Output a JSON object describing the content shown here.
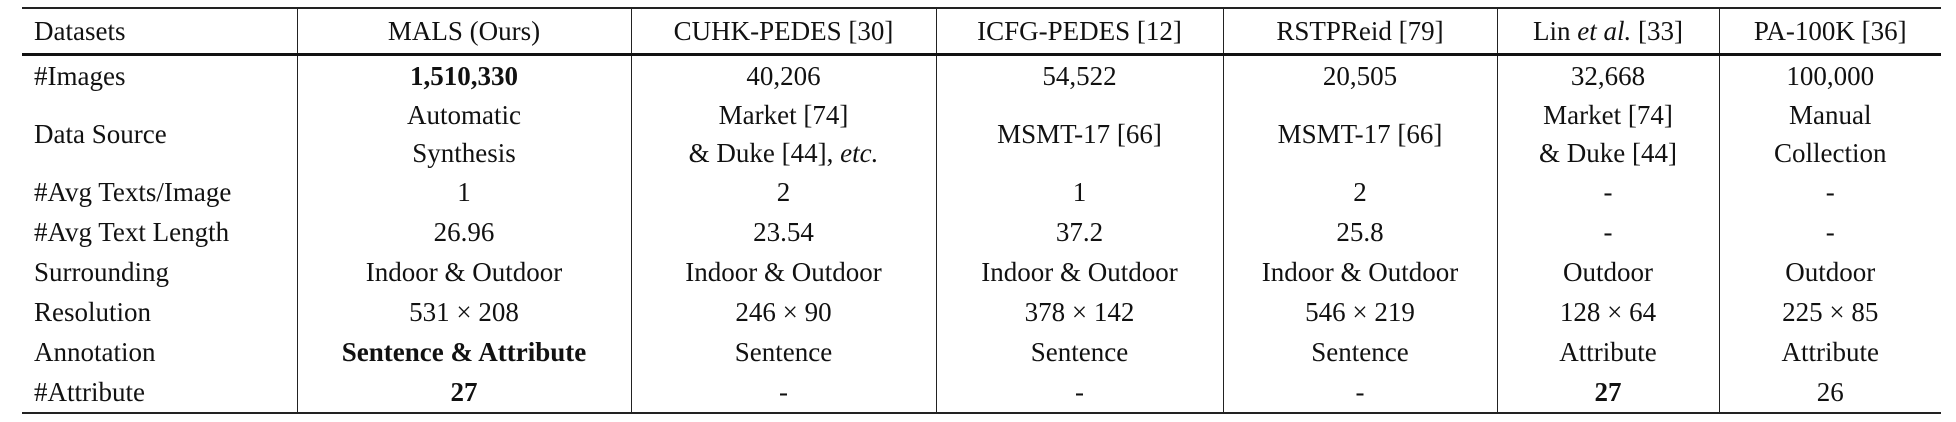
{
  "table": {
    "header": [
      "Datasets",
      "MALS (Ours)",
      "CUHK-PEDES [30]",
      "ICFG-PEDES [12]",
      "RSTPReid [79]",
      [
        {
          "text": "Lin "
        },
        {
          "text": "et al.",
          "italic": true
        },
        {
          "text": " [33]"
        }
      ],
      "PA-100K [36]"
    ],
    "rows": [
      [
        "#Images",
        {
          "text": "1,510,330",
          "bold": true
        },
        "40,206",
        "54,522",
        "20,505",
        "32,668",
        "100,000"
      ],
      [
        "Data Source",
        {
          "lines": [
            "Automatic",
            "Synthesis"
          ]
        },
        {
          "lines": [
            "Market [74]",
            [
              {
                "text": "& Duke [44], "
              },
              {
                "text": "etc.",
                "italic": true
              }
            ]
          ]
        },
        "MSMT-17 [66]",
        "MSMT-17 [66]",
        {
          "lines": [
            "Market [74]",
            "& Duke [44]"
          ]
        },
        {
          "lines": [
            "Manual",
            "Collection"
          ]
        }
      ],
      [
        "#Avg Texts/Image",
        "1",
        "2",
        "1",
        "2",
        "-",
        "-"
      ],
      [
        "#Avg Text Length",
        "26.96",
        "23.54",
        "37.2",
        "25.8",
        "-",
        "-"
      ],
      [
        "Surrounding",
        "Indoor & Outdoor",
        "Indoor & Outdoor",
        "Indoor & Outdoor",
        "Indoor & Outdoor",
        "Outdoor",
        "Outdoor"
      ],
      [
        "Resolution",
        "531 × 208",
        "246 × 90",
        "378 × 142",
        "546 × 219",
        "128 × 64",
        "225 × 85"
      ],
      [
        "Annotation",
        {
          "text": "Sentence & Attribute",
          "bold": true
        },
        "Sentence",
        "Sentence",
        "Sentence",
        "Attribute",
        "Attribute"
      ],
      [
        "#Attribute",
        {
          "text": "27",
          "bold": true
        },
        "-",
        "-",
        "-",
        {
          "text": "27",
          "bold": true
        },
        "26"
      ]
    ]
  }
}
